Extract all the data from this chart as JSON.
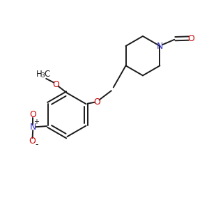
{
  "bg_color": "#FFFFFF",
  "bond_color": "#1a1a1a",
  "N_color": "#3333CC",
  "O_color": "#CC0000",
  "line_width": 1.4,
  "figsize": [
    3.0,
    3.0
  ],
  "dpi": 100,
  "xlim": [
    0,
    10
  ],
  "ylim": [
    0,
    10
  ]
}
